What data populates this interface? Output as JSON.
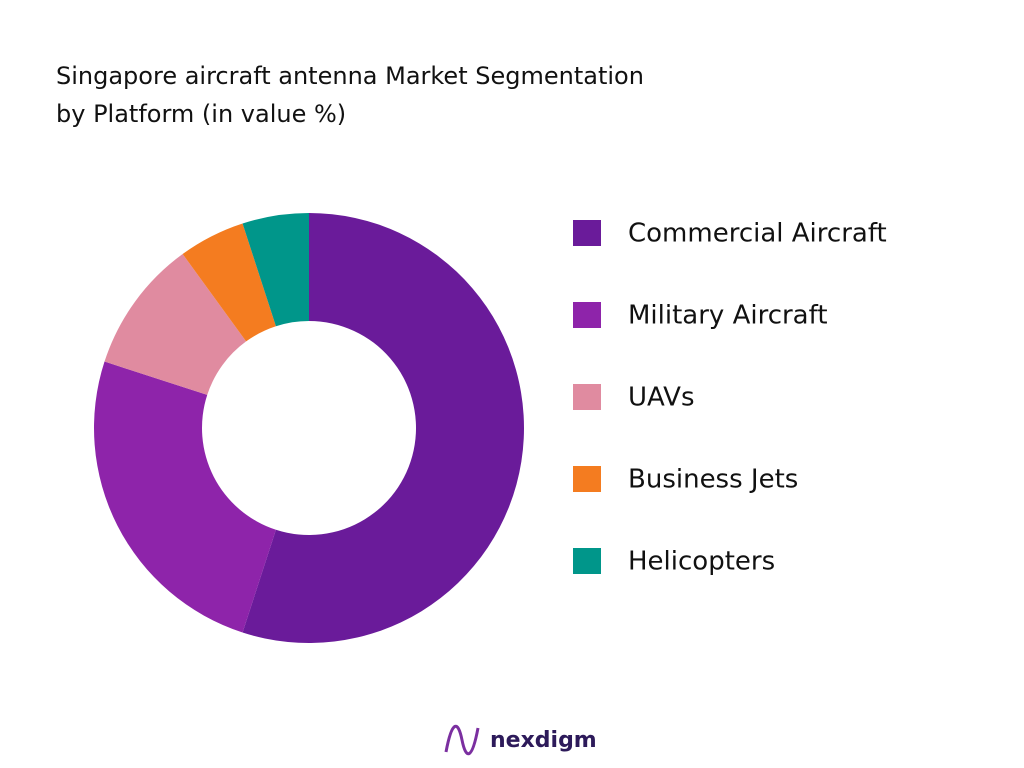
{
  "chart_data": {
    "type": "donut",
    "title": [
      "Singapore aircraft antenna Market Segmentation",
      "by Platform (in value %)"
    ],
    "categories": [
      "Commercial Aircraft",
      "Military Aircraft",
      "UAVs",
      "Business Jets",
      "Helicopters"
    ],
    "values": [
      55,
      25,
      10,
      5,
      5
    ],
    "colors": [
      "#6a1b9a",
      "#8e24aa",
      "#e08ba0",
      "#f47c20",
      "#00968a"
    ],
    "legend": "right"
  },
  "footer": {
    "brand": "nexdigm"
  }
}
